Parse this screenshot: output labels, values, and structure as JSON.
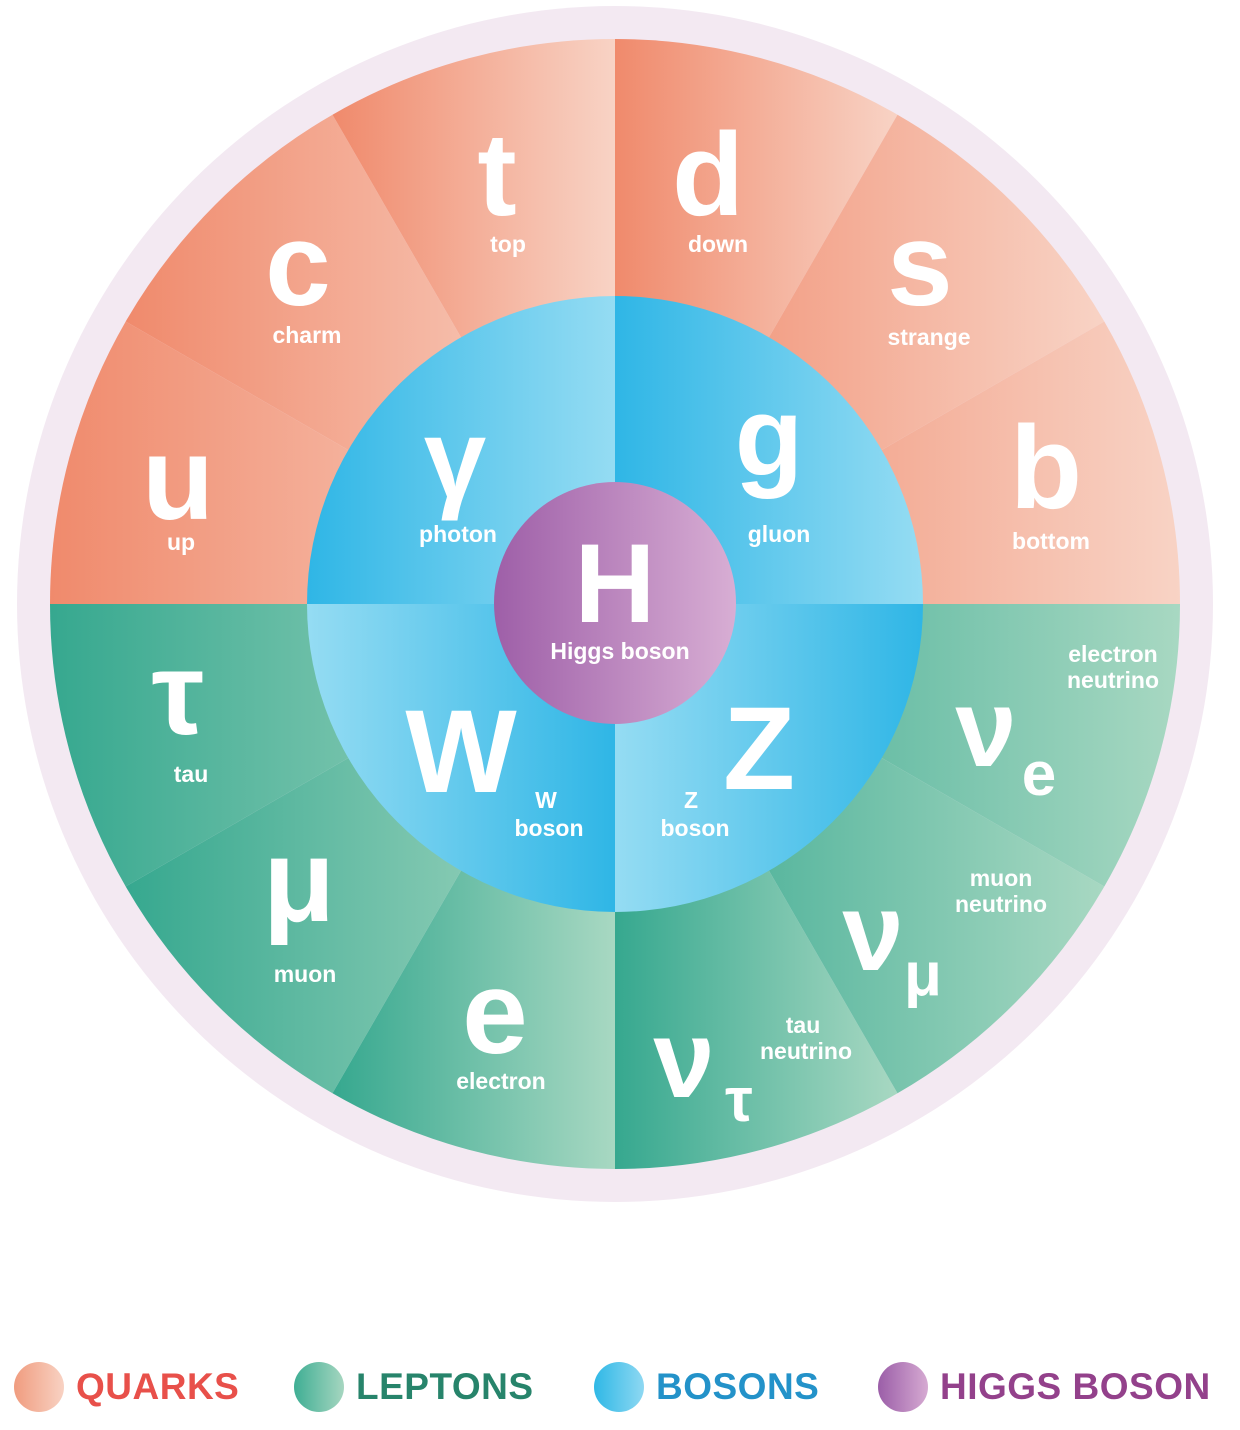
{
  "colors": {
    "ring": "#f3e9f2",
    "quark_dark": "#f08a6c",
    "quark_light": "#f8d3c5",
    "lepton_dark": "#36a88f",
    "lepton_light": "#a8d8c2",
    "boson_dark": "#2fb6e6",
    "boson_light": "#95dcf3",
    "higgs_dark": "#9e5fa8",
    "higgs_light": "#d8aed4",
    "legend_quarks": "#e8504a",
    "legend_leptons": "#27846b",
    "legend_bosons": "#2392c9",
    "legend_higgs": "#93418b"
  },
  "quarks": [
    {
      "symbol": "u",
      "name": "up"
    },
    {
      "symbol": "c",
      "name": "charm"
    },
    {
      "symbol": "t",
      "name": "top"
    },
    {
      "symbol": "d",
      "name": "down"
    },
    {
      "symbol": "s",
      "name": "strange"
    },
    {
      "symbol": "b",
      "name": "bottom"
    }
  ],
  "leptons": [
    {
      "symbol": "τ",
      "name": "tau"
    },
    {
      "symbol": "μ",
      "name": "muon"
    },
    {
      "symbol": "e",
      "name": "electron"
    },
    {
      "symbol": "ν",
      "subscript": "τ",
      "name_line1": "tau",
      "name_line2": "neutrino"
    },
    {
      "symbol": "ν",
      "subscript": "μ",
      "name_line1": "muon",
      "name_line2": "neutrino"
    },
    {
      "symbol": "ν",
      "subscript": "e",
      "name_line1": "electron",
      "name_line2": "neutrino"
    }
  ],
  "bosons": [
    {
      "symbol": "γ",
      "name": "photon"
    },
    {
      "symbol": "g",
      "name": "gluon"
    },
    {
      "symbol": "W",
      "name_line1": "W",
      "name_line2": "boson"
    },
    {
      "symbol": "Z",
      "name_line1": "Z",
      "name_line2": "boson"
    }
  ],
  "higgs": {
    "symbol": "H",
    "name": "Higgs boson"
  },
  "legend": [
    {
      "label": "QUARKS"
    },
    {
      "label": "LEPTONS"
    },
    {
      "label": "BOSONS"
    },
    {
      "label": "HIGGS BOSON"
    }
  ]
}
